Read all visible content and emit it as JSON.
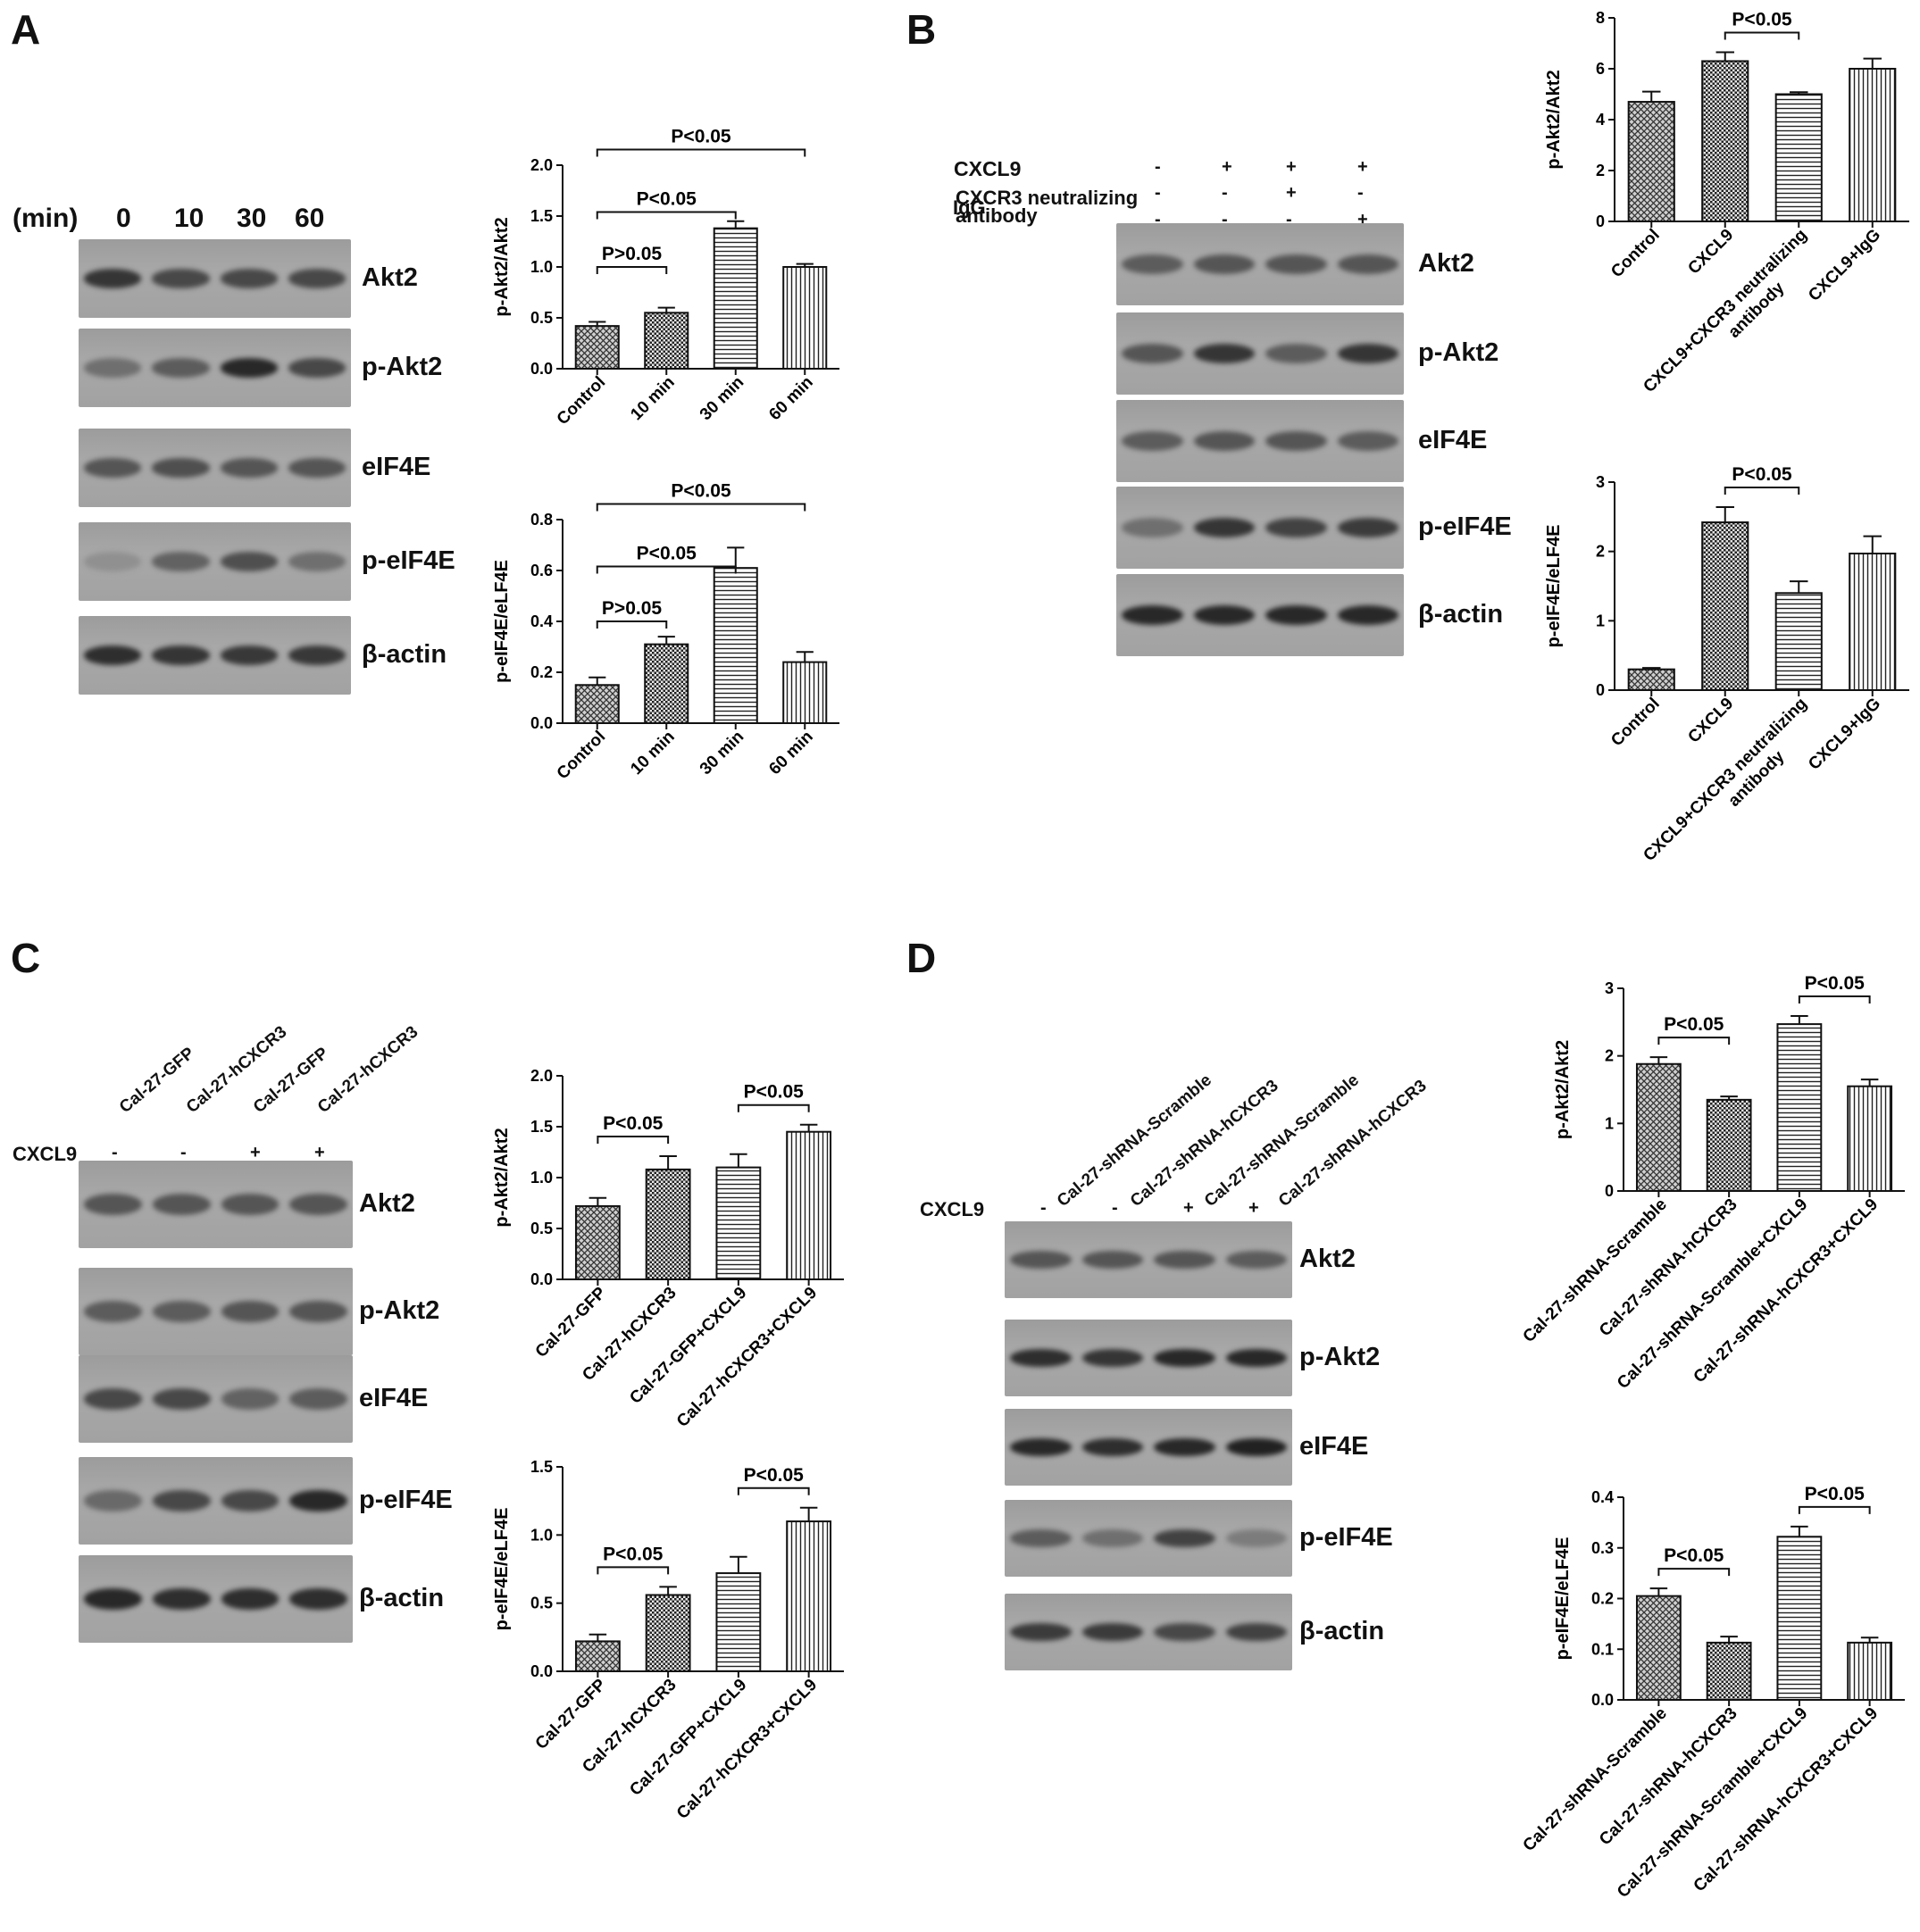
{
  "panels": [
    {
      "letter": "A",
      "lanes": [
        "0",
        "10",
        "30",
        "60"
      ],
      "lane_unit": "(min)",
      "blots": [
        "Akt2",
        "p-Akt2",
        "eIF4E",
        "p-eIF4E",
        "β-actin"
      ]
    },
    {
      "letter": "B",
      "conditions": [
        {
          "label": "CXCL9",
          "signs": [
            "-",
            "+",
            "+",
            "+"
          ]
        },
        {
          "label": "CXCR3 neutralizing antibody",
          "signs": [
            "-",
            "-",
            "+",
            "-"
          ]
        },
        {
          "label": "IgG",
          "signs": [
            "-",
            "-",
            "-",
            "+"
          ]
        }
      ],
      "blots": [
        "Akt2",
        "p-Akt2",
        "eIF4E",
        "p-eIF4E",
        "β-actin"
      ]
    },
    {
      "letter": "C",
      "lanes": [
        "Cal-27-GFP",
        "Cal-27-hCXCR3",
        "Cal-27-GFP",
        "Cal-27-hCXCR3"
      ],
      "condition": {
        "label": "CXCL9",
        "signs": [
          "-",
          "-",
          "+",
          "+"
        ]
      },
      "blots": [
        "Akt2",
        "p-Akt2",
        "eIF4E",
        "p-eIF4E",
        "β-actin"
      ]
    },
    {
      "letter": "D",
      "lanes": [
        "Cal-27-shRNA-Scramble",
        "Cal-27-shRNA-hCXCR3",
        "Cal-27-shRNA-Scramble",
        "Cal-27-shRNA-hCXCR3"
      ],
      "condition": {
        "label": "CXCL9",
        "signs": [
          "-",
          "-",
          "+",
          "+"
        ]
      },
      "blots": [
        "Akt2",
        "p-Akt2",
        "eIF4E",
        "p-eIF4E",
        "β-actin"
      ]
    }
  ],
  "chart_data": [
    {
      "id": "A1",
      "type": "bar",
      "title": "",
      "xlabel": "",
      "ylabel": "p-Akt2/Akt2",
      "ylim": [
        0,
        2.0
      ],
      "yticks": [
        "0.0",
        "0.5",
        "1.0",
        "1.5",
        "2.0"
      ],
      "categories": [
        "Control",
        "10 min",
        "30 min",
        "60 min"
      ],
      "values": [
        0.42,
        0.55,
        1.38,
        1.0
      ],
      "errors": [
        0.04,
        0.05,
        0.07,
        0.03
      ],
      "annotations": [
        {
          "from": 0,
          "to": 1,
          "label": "P>0.05"
        },
        {
          "from": 0,
          "to": 2,
          "label": "P<0.05"
        },
        {
          "from": 0,
          "to": 3,
          "label": "P<0.05"
        }
      ]
    },
    {
      "id": "A2",
      "type": "bar",
      "title": "",
      "xlabel": "",
      "ylabel": "p-eIF4E/eLF4E",
      "ylim": [
        0,
        0.8
      ],
      "yticks": [
        "0.0",
        "0.2",
        "0.4",
        "0.6",
        "0.8"
      ],
      "categories": [
        "Control",
        "10 min",
        "30 min",
        "60 min"
      ],
      "values": [
        0.15,
        0.31,
        0.61,
        0.24
      ],
      "errors": [
        0.03,
        0.03,
        0.08,
        0.04
      ],
      "annotations": [
        {
          "from": 0,
          "to": 1,
          "label": "P>0.05"
        },
        {
          "from": 0,
          "to": 2,
          "label": "P<0.05"
        },
        {
          "from": 0,
          "to": 3,
          "label": "P<0.05"
        }
      ]
    },
    {
      "id": "B1",
      "type": "bar",
      "title": "",
      "xlabel": "",
      "ylabel": "p-Akt2/Akt2",
      "ylim": [
        0,
        8
      ],
      "yticks": [
        "0",
        "2",
        "4",
        "6",
        "8"
      ],
      "categories": [
        "Control",
        "CXCL9",
        "CXCL9+CXCR3 neutralizing antibody",
        "CXCL9+IgG"
      ],
      "values": [
        4.7,
        6.3,
        5.0,
        6.0
      ],
      "errors": [
        0.4,
        0.35,
        0.08,
        0.4
      ],
      "annotations": [
        {
          "from": 1,
          "to": 2,
          "label": "P<0.05"
        }
      ]
    },
    {
      "id": "B2",
      "type": "bar",
      "title": "",
      "xlabel": "",
      "ylabel": "p-eIF4E/eLF4E",
      "ylim": [
        0,
        3
      ],
      "yticks": [
        "0",
        "1",
        "2",
        "3"
      ],
      "categories": [
        "Control",
        "CXCL9",
        "CXCL9+CXCR3 neutralizing antibody",
        "CXCL9+IgG"
      ],
      "values": [
        0.3,
        2.42,
        1.4,
        1.97
      ],
      "errors": [
        0.02,
        0.22,
        0.17,
        0.25
      ],
      "annotations": [
        {
          "from": 1,
          "to": 2,
          "label": "P<0.05"
        }
      ]
    },
    {
      "id": "C1",
      "type": "bar",
      "title": "",
      "xlabel": "",
      "ylabel": "p-Akt2/Akt2",
      "ylim": [
        0,
        2.0
      ],
      "yticks": [
        "0.0",
        "0.5",
        "1.0",
        "1.5",
        "2.0"
      ],
      "categories": [
        "Cal-27-GFP",
        "Cal-27-hCXCR3",
        "Cal-27-GFP+CXCL9",
        "Cal-27-hCXCR3+CXCL9"
      ],
      "values": [
        0.72,
        1.08,
        1.1,
        1.45
      ],
      "errors": [
        0.08,
        0.13,
        0.13,
        0.07
      ],
      "annotations": [
        {
          "from": 0,
          "to": 1,
          "label": "P<0.05"
        },
        {
          "from": 2,
          "to": 3,
          "label": "P<0.05"
        }
      ]
    },
    {
      "id": "C2",
      "type": "bar",
      "title": "",
      "xlabel": "",
      "ylabel": "p-eIF4E/eLF4E",
      "ylim": [
        0,
        1.5
      ],
      "yticks": [
        "0.0",
        "0.5",
        "1.0",
        "1.5"
      ],
      "categories": [
        "Cal-27-GFP",
        "Cal-27-hCXCR3",
        "Cal-27-GFP+CXCL9",
        "Cal-27-hCXCR3+CXCL9"
      ],
      "values": [
        0.22,
        0.56,
        0.72,
        1.1
      ],
      "errors": [
        0.05,
        0.06,
        0.12,
        0.1
      ],
      "annotations": [
        {
          "from": 0,
          "to": 1,
          "label": "P<0.05"
        },
        {
          "from": 2,
          "to": 3,
          "label": "P<0.05"
        }
      ]
    },
    {
      "id": "D1",
      "type": "bar",
      "title": "",
      "xlabel": "",
      "ylabel": "p-Akt2/Akt2",
      "ylim": [
        0,
        3
      ],
      "yticks": [
        "0",
        "1",
        "2",
        "3"
      ],
      "categories": [
        "Cal-27-shRNA-Scramble",
        "Cal-27-shRNA-hCXCR3",
        "Cal-27-shRNA-Scramble+CXCL9",
        "Cal-27-shRNA-hCXCR3+CXCL9"
      ],
      "values": [
        1.88,
        1.35,
        2.47,
        1.55
      ],
      "errors": [
        0.1,
        0.05,
        0.12,
        0.1
      ],
      "annotations": [
        {
          "from": 0,
          "to": 1,
          "label": "P<0.05"
        },
        {
          "from": 2,
          "to": 3,
          "label": "P<0.05"
        }
      ]
    },
    {
      "id": "D2",
      "type": "bar",
      "title": "",
      "xlabel": "",
      "ylabel": "p-eIF4E/eLF4E",
      "ylim": [
        0,
        0.4
      ],
      "yticks": [
        "0.0",
        "0.1",
        "0.2",
        "0.3",
        "0.4"
      ],
      "categories": [
        "Cal-27-shRNA-Scramble",
        "Cal-27-shRNA-hCXCR3",
        "Cal-27-shRNA-Scramble+CXCL9",
        "Cal-27-shRNA-hCXCR3+CXCL9"
      ],
      "values": [
        0.205,
        0.113,
        0.322,
        0.113
      ],
      "errors": [
        0.015,
        0.012,
        0.02,
        0.01
      ],
      "annotations": [
        {
          "from": 0,
          "to": 1,
          "label": "P<0.05"
        },
        {
          "from": 2,
          "to": 3,
          "label": "P<0.05"
        }
      ]
    }
  ]
}
